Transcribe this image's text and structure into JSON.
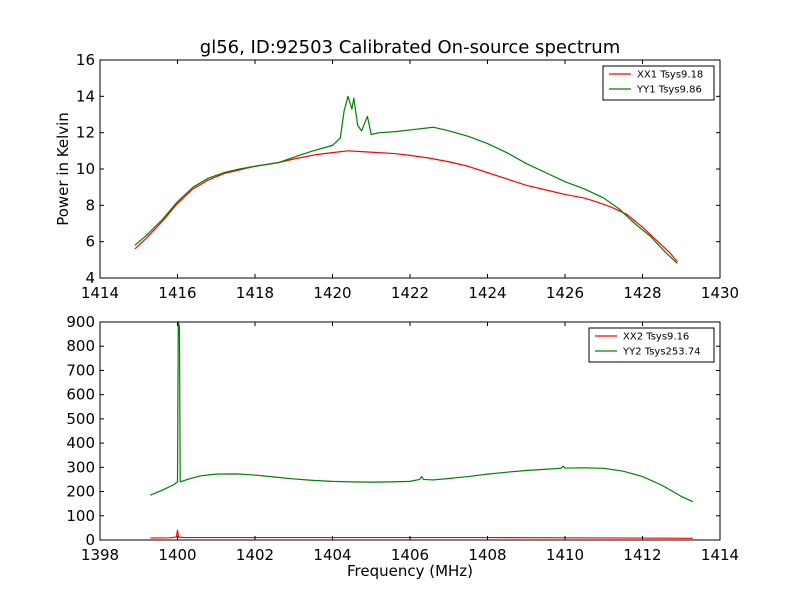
{
  "chart_data": [
    {
      "type": "line",
      "title": "gl56, ID:92503 Calibrated On-source spectrum",
      "xlabel": "",
      "ylabel": "Power in Kelvin",
      "xlim": [
        1414,
        1430
      ],
      "ylim": [
        4,
        16
      ],
      "xticks": [
        1414,
        1416,
        1418,
        1420,
        1422,
        1424,
        1426,
        1428,
        1430
      ],
      "yticks": [
        4,
        6,
        8,
        10,
        12,
        14,
        16
      ],
      "legend_position": "top-right",
      "grid": false,
      "series": [
        {
          "name": "XX1 Tsys9.18",
          "color": "#ff0000",
          "points": [
            [
              1414.9,
              5.6
            ],
            [
              1415.2,
              6.2
            ],
            [
              1415.6,
              7.1
            ],
            [
              1416.0,
              8.1
            ],
            [
              1416.4,
              8.9
            ],
            [
              1416.8,
              9.4
            ],
            [
              1417.2,
              9.75
            ],
            [
              1417.6,
              9.95
            ],
            [
              1418.0,
              10.15
            ],
            [
              1418.6,
              10.35
            ],
            [
              1419.0,
              10.55
            ],
            [
              1419.6,
              10.8
            ],
            [
              1420.0,
              10.9
            ],
            [
              1420.4,
              11.0
            ],
            [
              1420.8,
              10.95
            ],
            [
              1421.2,
              10.9
            ],
            [
              1421.6,
              10.85
            ],
            [
              1422.0,
              10.75
            ],
            [
              1422.5,
              10.6
            ],
            [
              1423.0,
              10.4
            ],
            [
              1423.5,
              10.15
            ],
            [
              1424.0,
              9.8
            ],
            [
              1424.5,
              9.45
            ],
            [
              1425.0,
              9.1
            ],
            [
              1425.5,
              8.85
            ],
            [
              1426.0,
              8.6
            ],
            [
              1426.5,
              8.4
            ],
            [
              1426.8,
              8.2
            ],
            [
              1427.2,
              7.9
            ],
            [
              1427.6,
              7.5
            ],
            [
              1428.0,
              6.8
            ],
            [
              1428.4,
              6.0
            ],
            [
              1428.7,
              5.4
            ],
            [
              1428.9,
              4.9
            ]
          ]
        },
        {
          "name": "YY1 Tsys9.86",
          "color": "#008000",
          "points": [
            [
              1414.9,
              5.8
            ],
            [
              1415.2,
              6.35
            ],
            [
              1415.6,
              7.2
            ],
            [
              1416.0,
              8.2
            ],
            [
              1416.4,
              9.0
            ],
            [
              1416.8,
              9.5
            ],
            [
              1417.2,
              9.8
            ],
            [
              1417.6,
              10.0
            ],
            [
              1418.0,
              10.15
            ],
            [
              1418.6,
              10.35
            ],
            [
              1419.0,
              10.65
            ],
            [
              1419.5,
              11.0
            ],
            [
              1420.0,
              11.3
            ],
            [
              1420.2,
              11.7
            ],
            [
              1420.3,
              13.2
            ],
            [
              1420.4,
              14.0
            ],
            [
              1420.5,
              13.3
            ],
            [
              1420.55,
              13.9
            ],
            [
              1420.65,
              12.4
            ],
            [
              1420.75,
              12.1
            ],
            [
              1420.9,
              12.9
            ],
            [
              1421.0,
              11.9
            ],
            [
              1421.2,
              12.0
            ],
            [
              1421.6,
              12.05
            ],
            [
              1422.0,
              12.15
            ],
            [
              1422.6,
              12.3
            ],
            [
              1423.0,
              12.1
            ],
            [
              1423.5,
              11.8
            ],
            [
              1424.0,
              11.4
            ],
            [
              1424.5,
              10.9
            ],
            [
              1425.0,
              10.3
            ],
            [
              1425.5,
              9.8
            ],
            [
              1426.0,
              9.3
            ],
            [
              1426.5,
              8.9
            ],
            [
              1427.0,
              8.4
            ],
            [
              1427.4,
              7.8
            ],
            [
              1427.8,
              7.0
            ],
            [
              1428.2,
              6.3
            ],
            [
              1428.6,
              5.4
            ],
            [
              1428.9,
              4.8
            ]
          ]
        }
      ]
    },
    {
      "type": "line",
      "title": "",
      "xlabel": "Frequency (MHz)",
      "ylabel": "",
      "xlim": [
        1398,
        1414
      ],
      "ylim": [
        0,
        900
      ],
      "xticks": [
        1398,
        1400,
        1402,
        1404,
        1406,
        1408,
        1410,
        1412,
        1414
      ],
      "yticks": [
        0,
        100,
        200,
        300,
        400,
        500,
        600,
        700,
        800,
        900
      ],
      "legend_position": "top-right",
      "grid": false,
      "series": [
        {
          "name": "XX2 Tsys9.16",
          "color": "#ff0000",
          "points": [
            [
              1399.3,
              8
            ],
            [
              1399.8,
              9
            ],
            [
              1399.97,
              12
            ],
            [
              1400.0,
              40
            ],
            [
              1400.03,
              12
            ],
            [
              1400.2,
              10
            ],
            [
              1402,
              10
            ],
            [
              1404,
              10
            ],
            [
              1406,
              10
            ],
            [
              1408,
              10
            ],
            [
              1410,
              9
            ],
            [
              1412,
              8
            ],
            [
              1413.3,
              7
            ]
          ]
        },
        {
          "name": "YY2 Tsys253.74",
          "color": "#008000",
          "points": [
            [
              1399.3,
              185
            ],
            [
              1399.6,
              205
            ],
            [
              1399.9,
              228
            ],
            [
              1400.0,
              240
            ],
            [
              1400.02,
              900
            ],
            [
              1400.05,
              880
            ],
            [
              1400.07,
              240
            ],
            [
              1400.3,
              252
            ],
            [
              1400.6,
              265
            ],
            [
              1401.0,
              272
            ],
            [
              1401.5,
              273
            ],
            [
              1402.0,
              268
            ],
            [
              1402.5,
              260
            ],
            [
              1403.0,
              252
            ],
            [
              1403.5,
              246
            ],
            [
              1404.0,
              242
            ],
            [
              1404.5,
              240
            ],
            [
              1405.0,
              239
            ],
            [
              1405.5,
              240
            ],
            [
              1406.0,
              242
            ],
            [
              1406.25,
              250
            ],
            [
              1406.3,
              262
            ],
            [
              1406.35,
              250
            ],
            [
              1406.6,
              248
            ],
            [
              1407.0,
              254
            ],
            [
              1407.5,
              262
            ],
            [
              1408.0,
              272
            ],
            [
              1408.5,
              280
            ],
            [
              1409.0,
              287
            ],
            [
              1409.5,
              292
            ],
            [
              1409.9,
              296
            ],
            [
              1409.95,
              305
            ],
            [
              1410.0,
              297
            ],
            [
              1410.5,
              298
            ],
            [
              1411.0,
              296
            ],
            [
              1411.5,
              284
            ],
            [
              1412.0,
              262
            ],
            [
              1412.5,
              226
            ],
            [
              1413.0,
              180
            ],
            [
              1413.3,
              158
            ]
          ]
        }
      ]
    }
  ]
}
